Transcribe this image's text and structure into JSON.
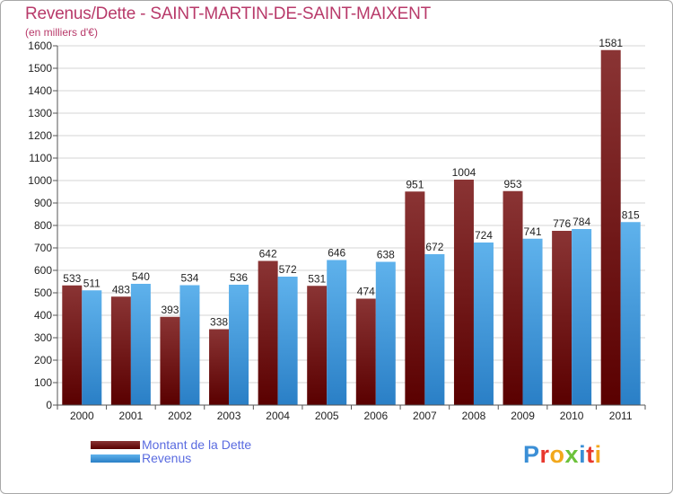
{
  "header": {
    "title": "Revenus/Dette - SAINT-MARTIN-DE-SAINT-MAIXENT",
    "subtitle": "(en milliers d'€)"
  },
  "logo": {
    "text": "Proxiti"
  },
  "colors": {
    "debt_top": "#8a3434",
    "debt_bottom": "#5a0000",
    "revenue_top": "#5fb2ec",
    "revenue_bottom": "#2a7fc6",
    "grid": "#d4d4d4"
  },
  "chart_data": {
    "type": "bar",
    "title": "Revenus/Dette - SAINT-MARTIN-DE-SAINT-MAIXENT",
    "subtitle": "(en milliers d'€)",
    "xlabel": "",
    "ylabel": "",
    "categories": [
      "2000",
      "2001",
      "2002",
      "2003",
      "2004",
      "2005",
      "2006",
      "2007",
      "2008",
      "2009",
      "2010",
      "2011"
    ],
    "series": [
      {
        "name": "Montant de la Dette",
        "values": [
          533,
          483,
          393,
          338,
          642,
          531,
          474,
          951,
          1004,
          953,
          776,
          1581
        ]
      },
      {
        "name": "Revenus",
        "values": [
          511,
          540,
          534,
          536,
          572,
          646,
          638,
          672,
          724,
          741,
          784,
          815
        ]
      }
    ],
    "ylim": [
      0,
      1600
    ],
    "yticks": [
      0,
      100,
      200,
      300,
      400,
      500,
      600,
      700,
      800,
      900,
      1000,
      1100,
      1200,
      1300,
      1400,
      1500,
      1600
    ],
    "grid": true,
    "legend": "bottom-left"
  }
}
